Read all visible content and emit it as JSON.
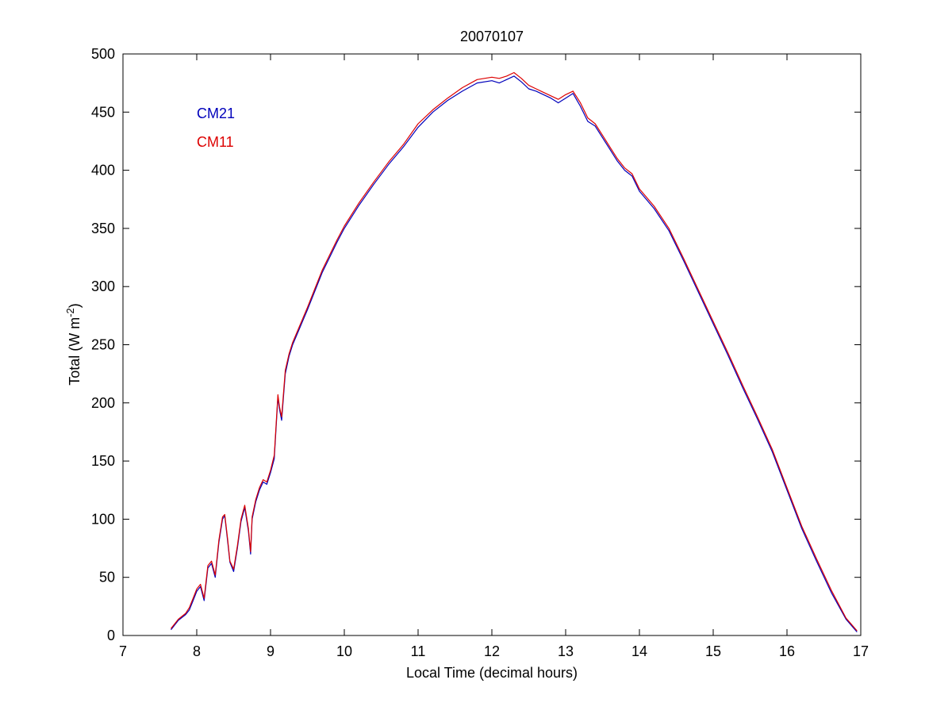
{
  "chart_data": {
    "type": "line",
    "title": "20070107",
    "xlabel": "Local Time (decimal hours)",
    "ylabel": "Total (W m",
    "ylabel_exponent": "-2",
    "ylabel_close": ")",
    "xlim": [
      7,
      17
    ],
    "ylim": [
      0,
      500
    ],
    "xticks": [
      7,
      8,
      9,
      10,
      11,
      12,
      13,
      14,
      15,
      16,
      17
    ],
    "yticks": [
      0,
      50,
      100,
      150,
      200,
      250,
      300,
      350,
      400,
      450,
      500
    ],
    "grid": false,
    "legend_position": "top-left",
    "series": [
      {
        "name": "CM21",
        "color": "#0000bb",
        "x": [
          7.65,
          7.75,
          7.85,
          7.9,
          7.95,
          8.0,
          8.05,
          8.1,
          8.15,
          8.2,
          8.25,
          8.3,
          8.35,
          8.38,
          8.42,
          8.45,
          8.5,
          8.55,
          8.6,
          8.65,
          8.7,
          8.73,
          8.75,
          8.8,
          8.85,
          8.9,
          8.95,
          9.0,
          9.05,
          9.1,
          9.12,
          9.15,
          9.2,
          9.25,
          9.3,
          9.4,
          9.5,
          9.6,
          9.7,
          9.8,
          9.9,
          10.0,
          10.2,
          10.4,
          10.6,
          10.8,
          11.0,
          11.2,
          11.4,
          11.6,
          11.8,
          12.0,
          12.1,
          12.2,
          12.3,
          12.4,
          12.5,
          12.6,
          12.7,
          12.8,
          12.9,
          13.0,
          13.1,
          13.2,
          13.3,
          13.4,
          13.5,
          13.6,
          13.7,
          13.8,
          13.9,
          14.0,
          14.2,
          14.4,
          14.6,
          14.8,
          15.0,
          15.2,
          15.4,
          15.6,
          15.8,
          16.0,
          16.2,
          16.4,
          16.6,
          16.8,
          16.95
        ],
        "y": [
          5,
          13,
          18,
          22,
          30,
          38,
          42,
          30,
          58,
          62,
          50,
          80,
          100,
          103,
          80,
          63,
          55,
          75,
          98,
          110,
          90,
          70,
          100,
          115,
          125,
          132,
          130,
          140,
          152,
          205,
          195,
          185,
          225,
          240,
          250,
          265,
          280,
          296,
          312,
          325,
          338,
          350,
          370,
          388,
          405,
          420,
          437,
          450,
          460,
          468,
          475,
          477,
          475,
          478,
          481,
          476,
          470,
          468,
          465,
          462,
          458,
          462,
          466,
          455,
          442,
          438,
          428,
          418,
          408,
          400,
          395,
          382,
          367,
          348,
          322,
          295,
          268,
          241,
          213,
          186,
          158,
          125,
          92,
          64,
          37,
          14,
          3
        ]
      },
      {
        "name": "CM11",
        "color": "#dd0000",
        "x": [
          7.65,
          7.75,
          7.85,
          7.9,
          7.95,
          8.0,
          8.05,
          8.1,
          8.15,
          8.2,
          8.25,
          8.3,
          8.35,
          8.38,
          8.42,
          8.45,
          8.5,
          8.55,
          8.6,
          8.65,
          8.7,
          8.73,
          8.75,
          8.8,
          8.85,
          8.9,
          8.95,
          9.0,
          9.05,
          9.1,
          9.12,
          9.15,
          9.2,
          9.25,
          9.3,
          9.4,
          9.5,
          9.6,
          9.7,
          9.8,
          9.9,
          10.0,
          10.2,
          10.4,
          10.6,
          10.8,
          11.0,
          11.2,
          11.4,
          11.6,
          11.8,
          12.0,
          12.1,
          12.2,
          12.3,
          12.4,
          12.5,
          12.6,
          12.7,
          12.8,
          12.9,
          13.0,
          13.1,
          13.2,
          13.3,
          13.4,
          13.5,
          13.6,
          13.7,
          13.8,
          13.9,
          14.0,
          14.2,
          14.4,
          14.6,
          14.8,
          15.0,
          15.2,
          15.4,
          15.6,
          15.8,
          16.0,
          16.2,
          16.4,
          16.6,
          16.8,
          16.95
        ],
        "y": [
          6,
          14,
          19,
          24,
          32,
          40,
          44,
          32,
          60,
          64,
          52,
          82,
          102,
          104,
          82,
          64,
          57,
          77,
          100,
          112,
          92,
          72,
          102,
          117,
          127,
          134,
          132,
          142,
          155,
          207,
          197,
          188,
          228,
          242,
          252,
          267,
          282,
          298,
          314,
          327,
          340,
          352,
          372,
          390,
          407,
          422,
          440,
          452,
          462,
          471,
          478,
          480,
          479,
          481,
          484,
          479,
          473,
          470,
          467,
          464,
          461,
          465,
          468,
          458,
          445,
          440,
          430,
          420,
          410,
          402,
          397,
          384,
          369,
          350,
          324,
          297,
          270,
          243,
          215,
          188,
          160,
          127,
          94,
          66,
          39,
          15,
          4
        ]
      }
    ]
  }
}
